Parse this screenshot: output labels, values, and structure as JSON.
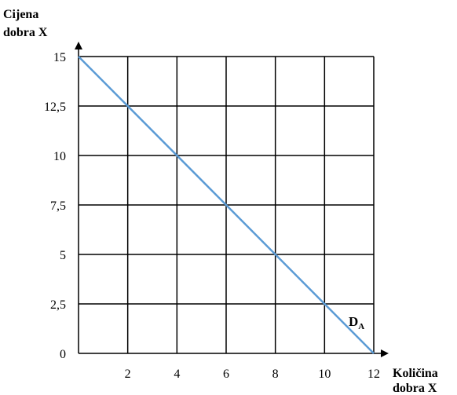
{
  "chart_data": {
    "type": "line",
    "title": "",
    "ylabel": [
      "Cijena",
      "dobra X"
    ],
    "xlabel": [
      "Količina",
      "dobra X"
    ],
    "xlim": [
      0,
      12
    ],
    "ylim": [
      0,
      15
    ],
    "x_ticks": [
      2,
      4,
      6,
      8,
      10,
      12
    ],
    "x_tick_labels": [
      "2",
      "4",
      "6",
      "8",
      "10",
      "12"
    ],
    "y_ticks": [
      0,
      2.5,
      5,
      7.5,
      10,
      12.5,
      15
    ],
    "y_tick_labels": [
      "0",
      "2,5",
      "5",
      "7,5",
      "10",
      "12,5",
      "15"
    ],
    "grid": true,
    "series": [
      {
        "label_main": "D",
        "label_sub": "A",
        "color": "#5b9bd5",
        "x": [
          0,
          12
        ],
        "y": [
          15,
          0
        ]
      }
    ]
  }
}
